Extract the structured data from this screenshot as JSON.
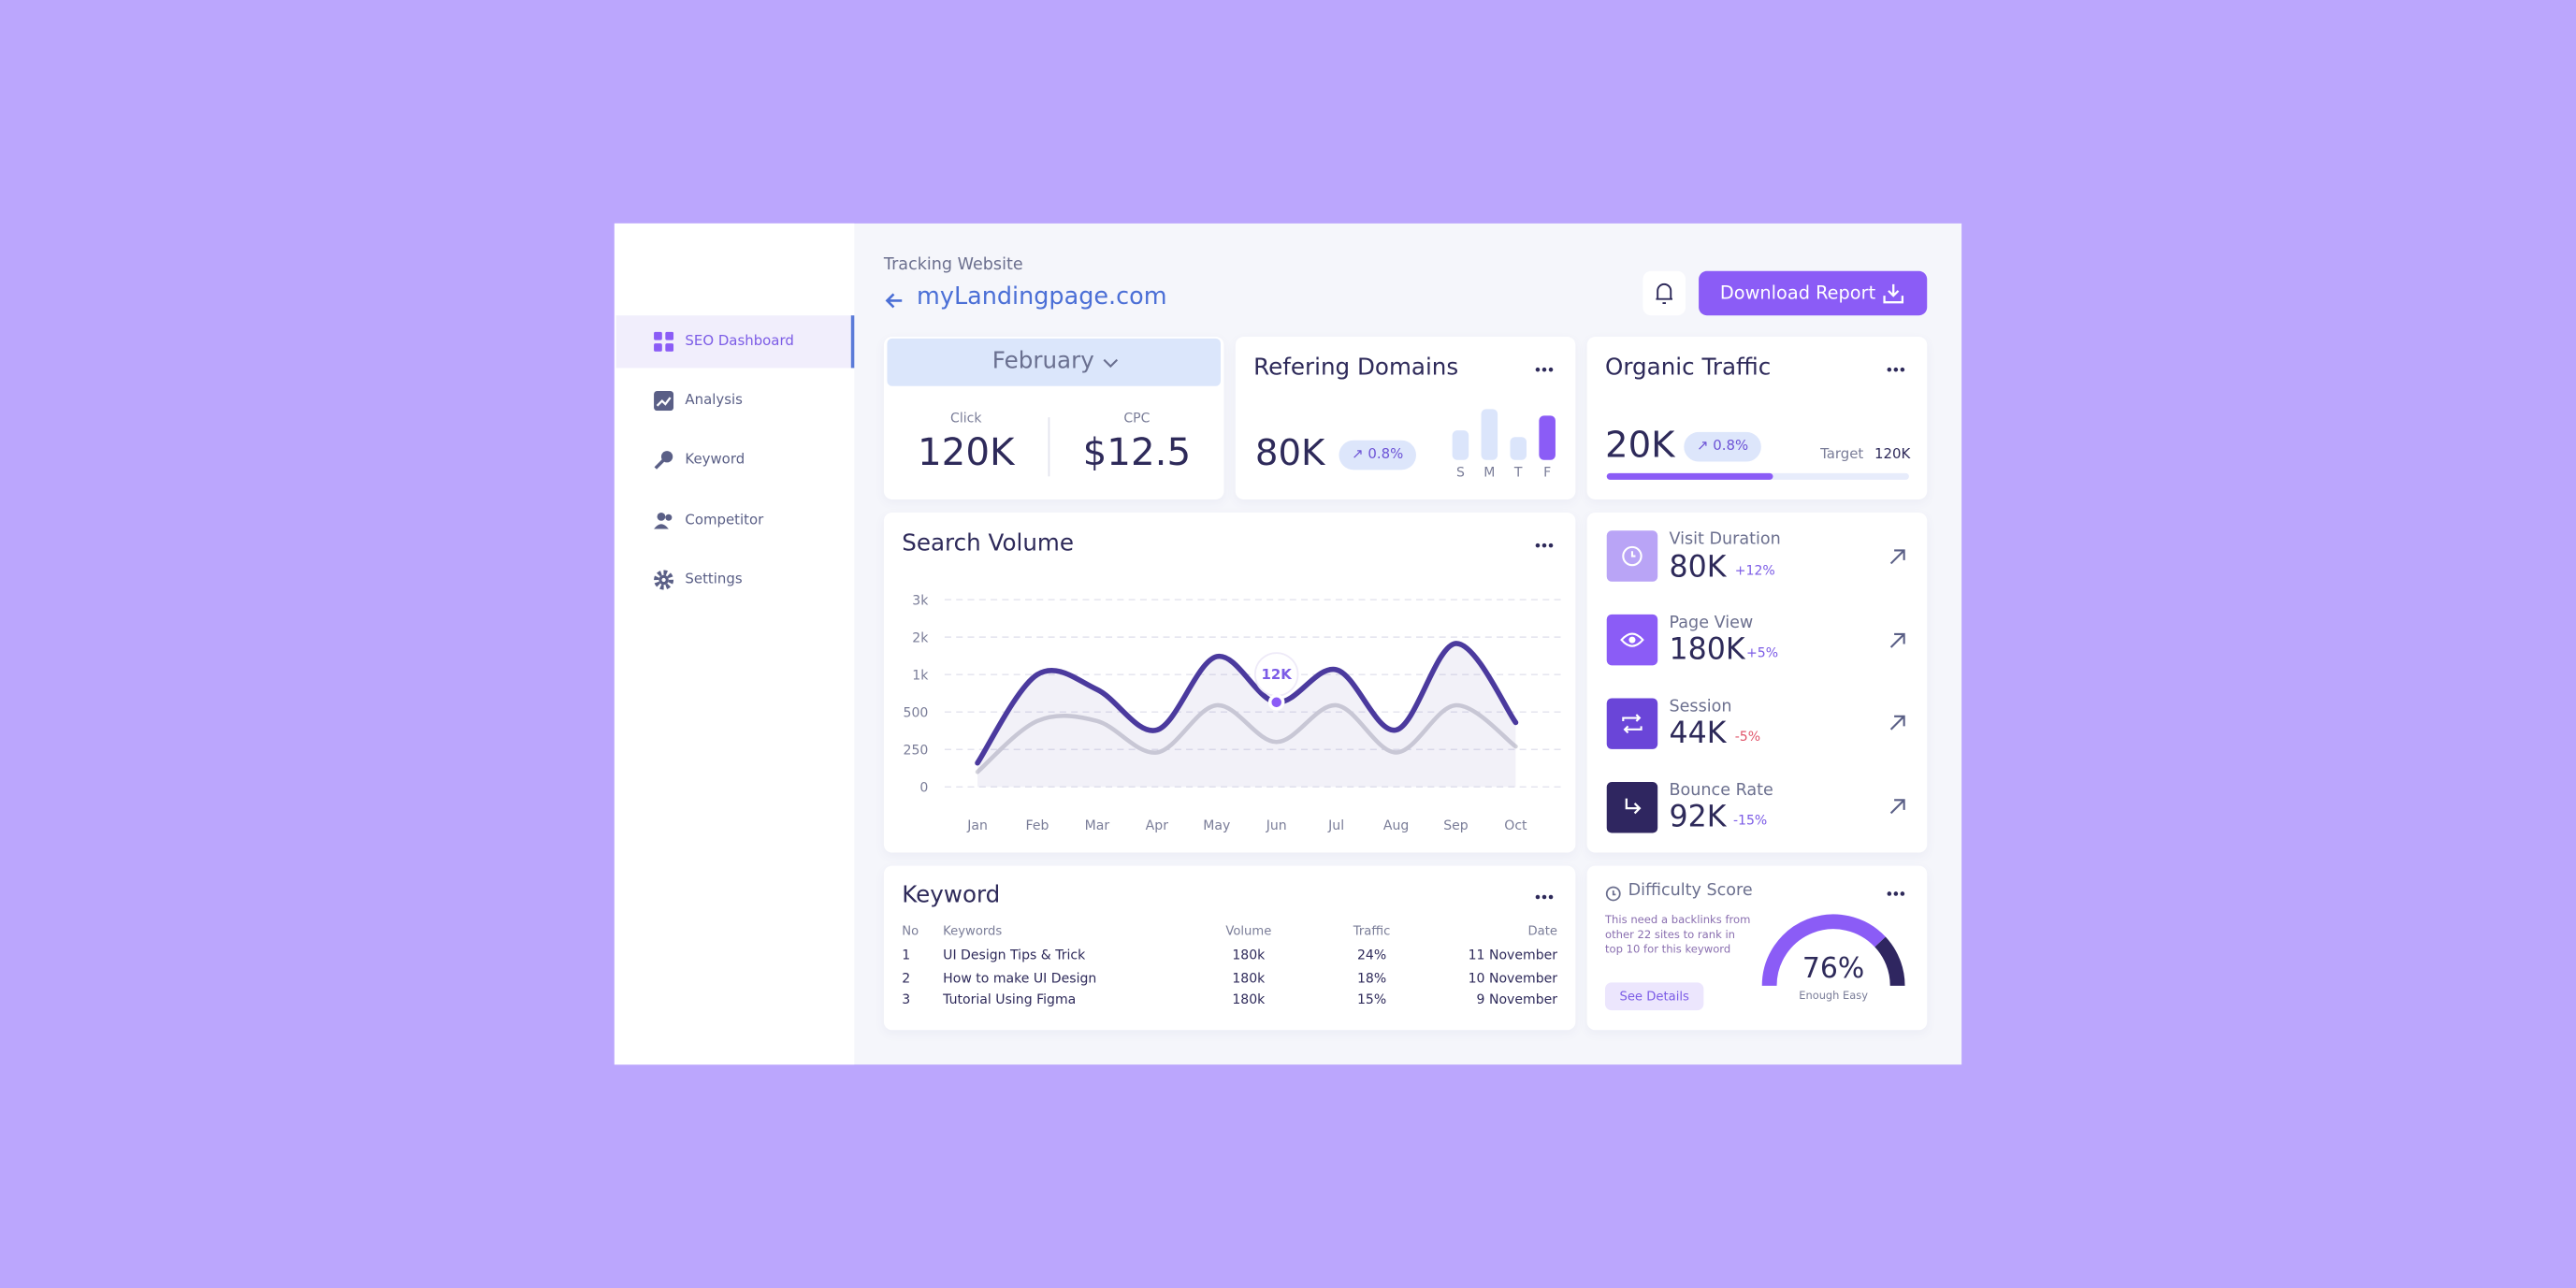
{
  "sidebar": {
    "items": [
      "SEO Dashboard",
      "Analysis",
      "Keyword",
      "Competitor",
      "Settings"
    ]
  },
  "header": {
    "subtitle": "Tracking Website",
    "site": "myLandingpage.com",
    "button": "Download Report"
  },
  "summary": {
    "month": "February",
    "click_label": "Click",
    "click": "120K",
    "cpc_label": "CPC",
    "cpc": "$12.5"
  },
  "referring": {
    "title": "Refering Domains",
    "value": "80K",
    "change": "0.8%",
    "chart": {
      "type": "bar",
      "categories": [
        "S",
        "M",
        "T",
        "F"
      ],
      "values": [
        18,
        31,
        14,
        27
      ],
      "ylim": [
        0,
        31
      ],
      "colors": [
        "#dbe5fb",
        "#dbe5fb",
        "#dbe5fb",
        "#8b5cf6"
      ]
    }
  },
  "organic": {
    "title": "Organic Traffic",
    "value": "20K",
    "change": "0.8%",
    "target_label": "Target",
    "target": "120K",
    "progress": 55
  },
  "search_volume": {
    "title": "Search Volume",
    "tooltip": "12K",
    "chart": {
      "type": "line",
      "categories": [
        "Jan",
        "Feb",
        "Mar",
        "Apr",
        "May",
        "Jun",
        "Jul",
        "Aug",
        "Sep",
        "Oct"
      ],
      "series": [
        {
          "color": "#4b3a9e",
          "values": [
            160,
            1000,
            800,
            380,
            1480,
            630,
            1130,
            380,
            1830,
            430
          ]
        },
        {
          "color": "#d2d2da",
          "values": [
            100,
            440,
            440,
            230,
            590,
            300,
            590,
            230,
            590,
            270
          ]
        }
      ],
      "ylim": [
        0,
        3000
      ],
      "yticks": [
        {
          "value": 3000,
          "label": "3k"
        },
        {
          "value": 2000,
          "label": "2k"
        },
        {
          "value": 1000,
          "label": "1k"
        },
        500,
        250,
        0
      ],
      "grid": true
    }
  },
  "stats": [
    {
      "label": "Visit Duration",
      "value": "80K",
      "change": "+12%"
    },
    {
      "label": "Page View",
      "value": "180K",
      "change": "+5%"
    },
    {
      "label": "Session",
      "value": "44K",
      "change": "-5%"
    },
    {
      "label": "Bounce Rate",
      "value": "92K",
      "change": "-15%"
    }
  ],
  "keyword": {
    "title": "Keyword",
    "columns": [
      "No",
      "Keywords",
      "Volume",
      "Traffic",
      "Date"
    ],
    "rows": [
      [
        "1",
        "UI Design Tips & Trick",
        "180k",
        "24%",
        "11 November"
      ],
      [
        "2",
        "How to make UI Design",
        "180k",
        "18%",
        "10 November"
      ],
      [
        "3",
        "Tutorial Using Figma",
        "180k",
        "15%",
        "9 November"
      ]
    ]
  },
  "difficulty": {
    "title": "Difficulty Score",
    "description": "This need a backlinks from other 22 sites to rank in top 10 for this keyword",
    "button": "See Details",
    "score": 76,
    "score_label": "76%",
    "caption": "Enough Easy"
  }
}
